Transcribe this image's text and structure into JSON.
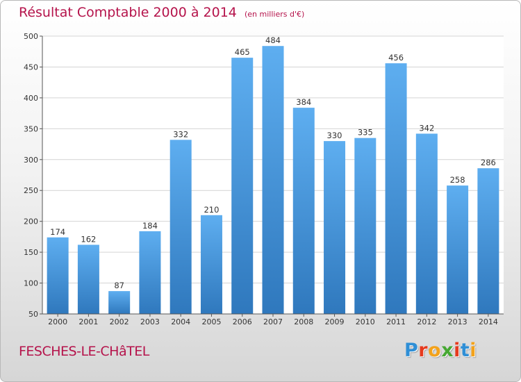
{
  "header": {
    "title": "Résultat Comptable 2000 à 2014",
    "subtitle": "(en milliers d'€)"
  },
  "footer": {
    "town": "FESCHES-LE-CHâTEL",
    "brand": "Proxiti",
    "brand_colors": [
      "#2f8fd6",
      "#e63a1e",
      "#f3a21b",
      "#46a832",
      "#e63a1e",
      "#2f8fd6",
      "#f3a21b"
    ]
  },
  "chart_data": {
    "type": "bar",
    "categories": [
      "2000",
      "2001",
      "2002",
      "2003",
      "2004",
      "2005",
      "2006",
      "2007",
      "2008",
      "2009",
      "2010",
      "2011",
      "2012",
      "2013",
      "2014"
    ],
    "values": [
      174,
      162,
      87,
      184,
      332,
      210,
      465,
      484,
      384,
      330,
      335,
      456,
      342,
      258,
      286
    ],
    "ylim": [
      50,
      500
    ],
    "yticks": [
      50,
      100,
      150,
      200,
      250,
      300,
      350,
      400,
      450,
      500
    ],
    "grid": true,
    "bar_color": "#3d8fd1",
    "bar_color_light": "#5eaef0"
  }
}
